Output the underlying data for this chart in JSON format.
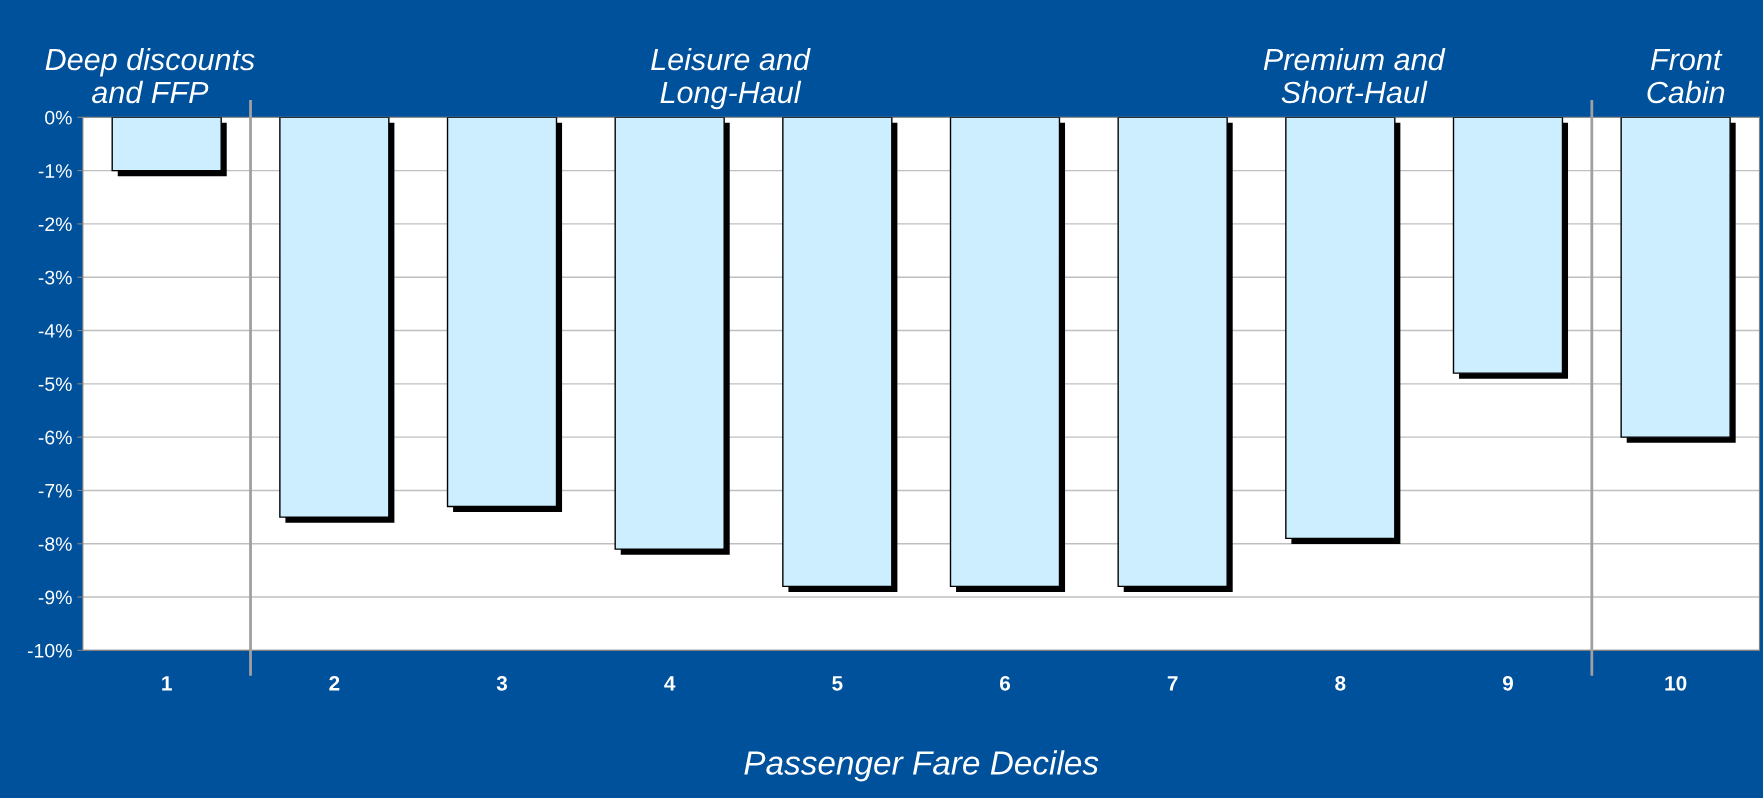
{
  "chart_data": {
    "type": "bar",
    "xlabel": "Passenger Fare Deciles",
    "categories": [
      "1",
      "2",
      "3",
      "4",
      "5",
      "6",
      "7",
      "8",
      "9",
      "10"
    ],
    "values": [
      -1.0,
      -7.5,
      -7.3,
      -8.1,
      -8.8,
      -8.8,
      -8.8,
      -7.9,
      -4.8,
      -6.0
    ],
    "color": "#cceeff",
    "ylim": [
      -10,
      0
    ],
    "yticks": [
      {
        "value": -10,
        "label": "-10%"
      },
      {
        "value": -9,
        "label": "-9%"
      },
      {
        "value": -8,
        "label": "-8%"
      },
      {
        "value": -7,
        "label": "-7%"
      },
      {
        "value": -6,
        "label": "-6%"
      },
      {
        "value": -5,
        "label": "-5%"
      },
      {
        "value": -4,
        "label": "-4%"
      },
      {
        "value": -3,
        "label": "-3%"
      },
      {
        "value": -2,
        "label": "-2%"
      },
      {
        "value": -1,
        "label": "-1%"
      },
      {
        "value": 0,
        "label": "0%"
      }
    ],
    "grid": "y",
    "annotations": [
      "Deep discounts\nand FFP",
      "Leisure and\nLong-Haul",
      "Premium and\nShort-Haul",
      "Front\nCabin"
    ]
  }
}
